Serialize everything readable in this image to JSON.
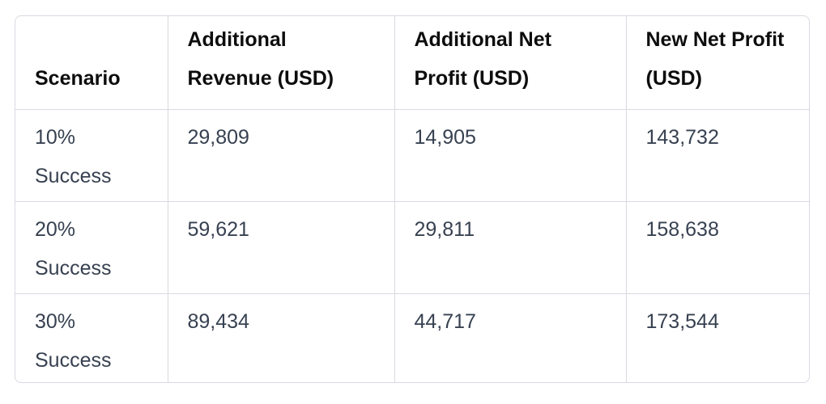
{
  "table": {
    "headers": [
      "Scenario",
      "Additional Revenue (USD)",
      "Additional Net Profit (USD)",
      "New Net Profit (USD)"
    ],
    "rows": [
      [
        "10% Success",
        "29,809",
        "14,905",
        "143,732"
      ],
      [
        "20% Success",
        "59,621",
        "29,811",
        "158,638"
      ],
      [
        "30% Success",
        "89,434",
        "44,717",
        "173,544"
      ]
    ]
  }
}
